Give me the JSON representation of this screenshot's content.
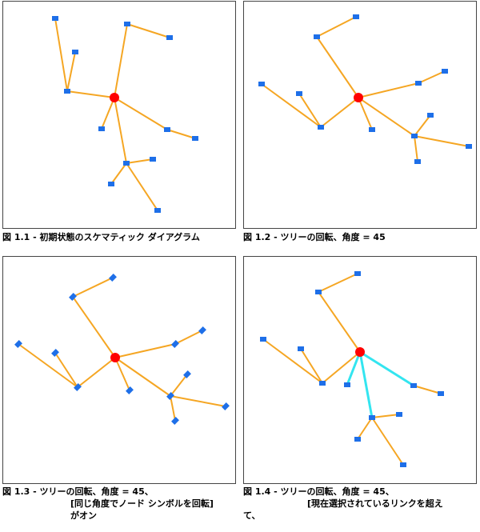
{
  "colors": {
    "link": "#f5a623",
    "selected_link": "#33e5f0",
    "root_node": "#ff0000",
    "node": "#1e6fe8"
  },
  "panels": [
    {
      "caption_line1": "図 1.1 - 初期状態のスケマティック ダイアグラム",
      "caption_line2": "",
      "caption_line3": ""
    },
    {
      "caption_line1": "図 1.2 - ツリーの回転、角度 = 45",
      "caption_line2": "",
      "caption_line3": ""
    },
    {
      "caption_line1": "図 1.3 - ツリーの回転、角度 = 45、",
      "caption_line2": "[同じ角度でノード シンボルを回転]",
      "caption_line3": "がオン"
    },
    {
      "caption_line1": "図 1.4 - ツリーの回転、角度 = 45、",
      "caption_line2": "[現在選択されているリンクを超え",
      "caption_line3": "て、"
    }
  ]
}
